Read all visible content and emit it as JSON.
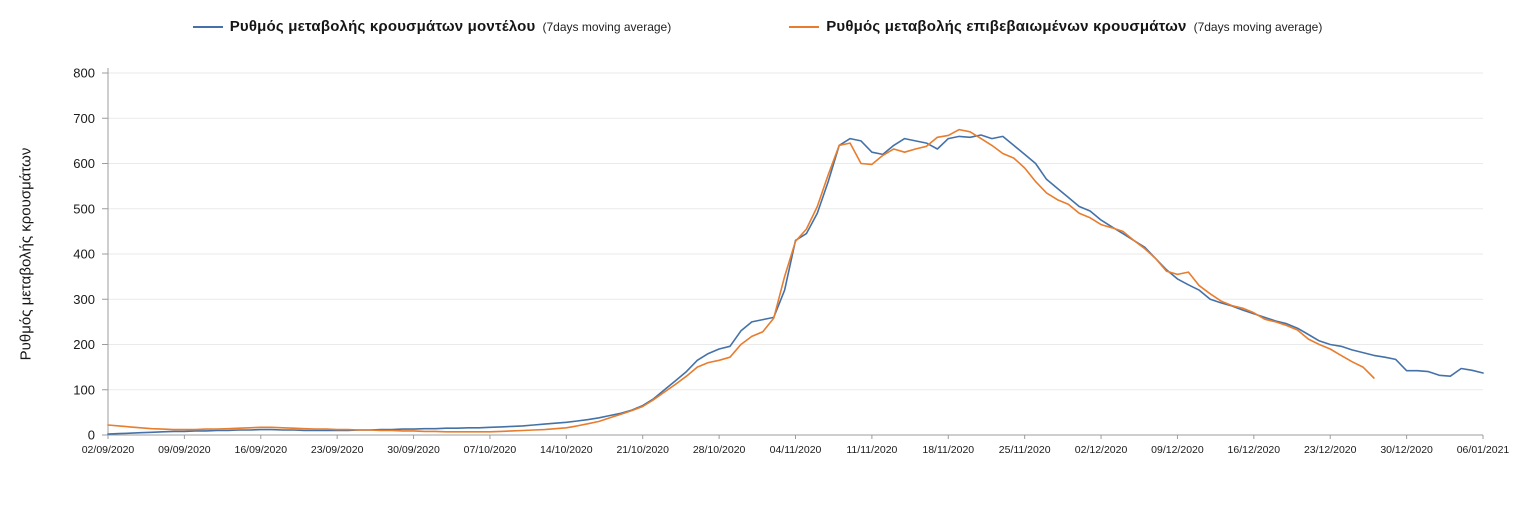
{
  "chart_data": {
    "type": "line",
    "title": "",
    "ylabel": "Ρυθμός μεταβολής κρουσμάτων",
    "xlabel": "",
    "ylim": [
      0,
      800
    ],
    "yticks": [
      0,
      100,
      200,
      300,
      400,
      500,
      600,
      700,
      800
    ],
    "grid": "horizontal",
    "legend_position": "top",
    "x_tick_interval_days": 7,
    "x_tick_labels": [
      "02/09/2020",
      "09/09/2020",
      "16/09/2020",
      "23/09/2020",
      "30/09/2020",
      "07/10/2020",
      "14/10/2020",
      "21/10/2020",
      "28/10/2020",
      "04/11/2020",
      "11/11/2020",
      "18/11/2020",
      "25/11/2020",
      "02/12/2020",
      "09/12/2020",
      "16/12/2020",
      "23/12/2020",
      "30/12/2020",
      "06/01/2021"
    ],
    "series": [
      {
        "id": "model",
        "name": "Ρυθμός μεταβολής κρουσμάτων μοντέλου",
        "suffix": "(7days moving average)",
        "color": "#4472a8",
        "values": [
          2,
          3,
          4,
          5,
          6,
          7,
          8,
          8,
          9,
          9,
          10,
          10,
          11,
          11,
          12,
          12,
          11,
          11,
          10,
          10,
          10,
          10,
          10,
          11,
          11,
          12,
          12,
          13,
          13,
          14,
          14,
          15,
          15,
          16,
          16,
          17,
          18,
          19,
          20,
          22,
          24,
          26,
          28,
          31,
          34,
          38,
          43,
          48,
          55,
          65,
          80,
          100,
          120,
          140,
          165,
          180,
          190,
          196,
          230,
          250,
          255,
          260,
          320,
          430,
          445,
          490,
          560,
          640,
          655,
          650,
          625,
          620,
          640,
          655,
          650,
          645,
          632,
          655,
          660,
          658,
          663,
          655,
          660,
          640,
          620,
          600,
          565,
          545,
          525,
          505,
          495,
          475,
          460,
          445,
          430,
          415,
          390,
          365,
          345,
          332,
          320,
          300,
          292,
          285,
          276,
          268,
          260,
          252,
          246,
          236,
          222,
          208,
          200,
          196,
          188,
          182,
          176,
          172,
          167,
          142,
          142,
          140,
          132,
          130,
          147,
          143,
          137
        ]
      },
      {
        "id": "confirmed",
        "name": "Ρυθμός μεταβολής επιβεβαιωμένων κρουσμάτων",
        "suffix": "(7days moving average)",
        "color": "#e87d2e",
        "values": [
          22,
          20,
          18,
          16,
          14,
          13,
          12,
          12,
          12,
          13,
          13,
          14,
          15,
          16,
          17,
          17,
          16,
          15,
          14,
          13,
          13,
          12,
          12,
          11,
          11,
          10,
          10,
          9,
          9,
          8,
          8,
          7,
          7,
          7,
          7,
          7,
          8,
          9,
          10,
          11,
          12,
          14,
          16,
          20,
          25,
          30,
          38,
          46,
          54,
          63,
          78,
          95,
          112,
          130,
          150,
          160,
          165,
          172,
          200,
          218,
          228,
          258,
          350,
          428,
          455,
          505,
          575,
          640,
          645,
          600,
          598,
          618,
          632,
          625,
          632,
          638,
          658,
          662,
          675,
          670,
          655,
          640,
          622,
          612,
          590,
          560,
          535,
          520,
          510,
          490,
          480,
          465,
          458,
          450,
          430,
          412,
          390,
          362,
          355,
          360,
          330,
          312,
          296,
          286,
          280,
          270,
          256,
          250,
          242,
          232,
          212,
          200,
          190,
          176,
          162,
          150,
          126,
          null,
          null,
          null,
          null,
          null,
          null,
          null,
          null,
          null,
          null
        ]
      }
    ]
  }
}
